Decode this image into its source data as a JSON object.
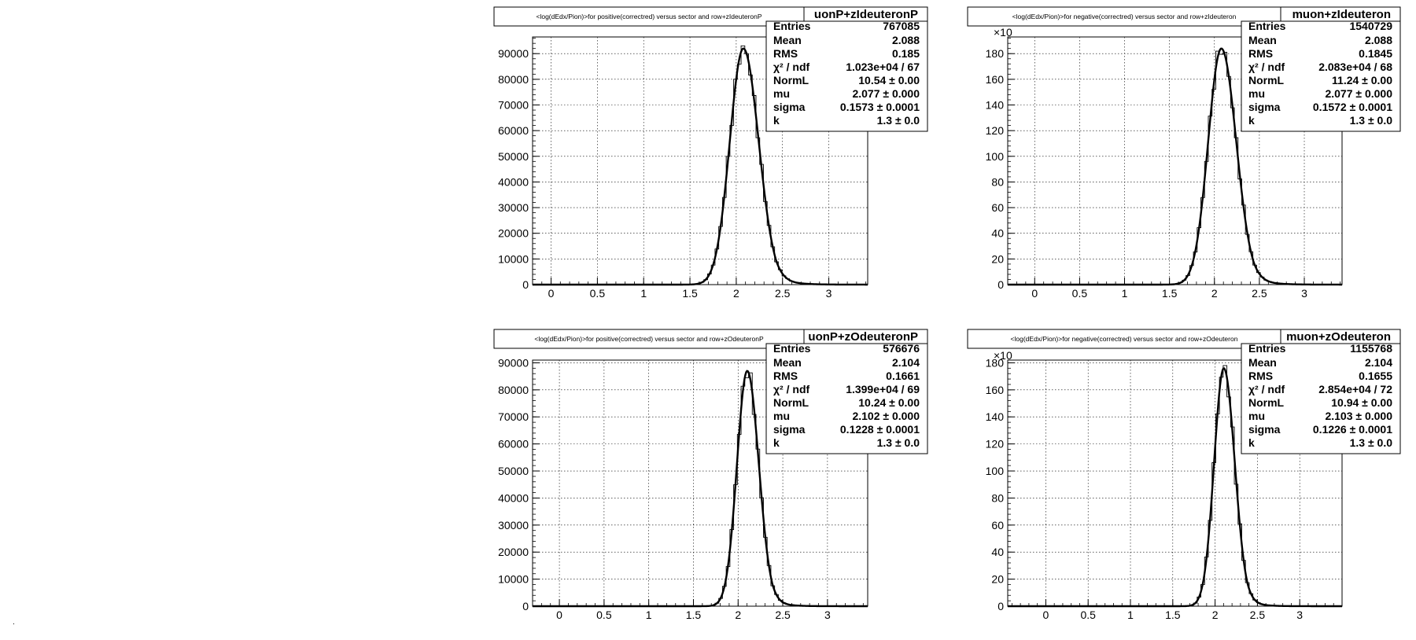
{
  "stray_mark": ".",
  "chart_data": [
    {
      "type": "histogram",
      "title": "<log(dEdx/Pion)>for positive(correctred) versus sector and row+zIdeuteronP",
      "hist_name": "uonP+zIdeuteronP",
      "xlim": [
        -0.2,
        3.42
      ],
      "ylim": [
        0,
        96500
      ],
      "x_ticks": [
        0,
        0.5,
        1,
        1.5,
        2,
        2.5,
        3
      ],
      "x_tick_labels": [
        "0",
        "0.5",
        "1",
        "1.5",
        "2",
        "2.5",
        "3"
      ],
      "y_ticks": [
        0,
        10000,
        20000,
        30000,
        40000,
        50000,
        60000,
        70000,
        80000,
        90000
      ],
      "y_tick_labels": [
        "0",
        "10000",
        "20000",
        "30000",
        "40000",
        "50000",
        "60000",
        "70000",
        "80000",
        "90000"
      ],
      "y_exponent": "",
      "grid": true,
      "stats": [
        {
          "name": "Entries",
          "value": "767085"
        },
        {
          "name": "Mean",
          "value": "2.088"
        },
        {
          "name": "RMS",
          "value": "0.185"
        },
        {
          "name": "χ² / ndf",
          "value": "1.023e+04 / 67"
        },
        {
          "name": "NormL",
          "value": "10.54 ± 0.00"
        },
        {
          "name": "mu",
          "value": "2.077 ± 0.000"
        },
        {
          "name": "sigma",
          "value": "0.1573 ± 0.0001"
        },
        {
          "name": "k",
          "value": "1.3 ± 0.0"
        }
      ],
      "fit": {
        "peak_x": 2.077,
        "peak_y": 92000,
        "sigma": 0.1573,
        "k": 1.3
      }
    },
    {
      "type": "histogram",
      "title": "<log(dEdx/Pion)>for negative(correctred) versus sector and row+zIdeuteron",
      "hist_name": "muon+zIdeuteron",
      "xlim": [
        -0.3,
        3.42
      ],
      "ylim": [
        0,
        193000
      ],
      "x_ticks": [
        0,
        0.5,
        1,
        1.5,
        2,
        2.5,
        3
      ],
      "x_tick_labels": [
        "0",
        "0.5",
        "1",
        "1.5",
        "2",
        "2.5",
        "3"
      ],
      "y_ticks": [
        0,
        20000,
        40000,
        60000,
        80000,
        100000,
        120000,
        140000,
        160000,
        180000
      ],
      "y_tick_labels": [
        "0",
        "20",
        "40",
        "60",
        "80",
        "100",
        "120",
        "140",
        "160",
        "180"
      ],
      "y_exponent": "×10",
      "grid": true,
      "stats": [
        {
          "name": "Entries",
          "value": "1540729"
        },
        {
          "name": "Mean",
          "value": "2.088"
        },
        {
          "name": "RMS",
          "value": "0.1845"
        },
        {
          "name": "χ² / ndf",
          "value": "2.083e+04 / 68"
        },
        {
          "name": "NormL",
          "value": "11.24 ± 0.00"
        },
        {
          "name": "mu",
          "value": "2.077 ± 0.000"
        },
        {
          "name": "sigma",
          "value": "0.1572 ± 0.0001"
        },
        {
          "name": "k",
          "value": "1.3 ± 0.0"
        }
      ],
      "fit": {
        "peak_x": 2.077,
        "peak_y": 184000,
        "sigma": 0.1572,
        "k": 1.3
      }
    },
    {
      "type": "histogram",
      "title": "<log(dEdx/Pion)>for positive(correctred) versus sector and row+zOdeuteronP",
      "hist_name": "uonP+zOdeuteronP",
      "xlim": [
        -0.3,
        3.45
      ],
      "ylim": [
        0,
        91000
      ],
      "x_ticks": [
        0,
        0.5,
        1,
        1.5,
        2,
        2.5,
        3
      ],
      "x_tick_labels": [
        "0",
        "0.5",
        "1",
        "1.5",
        "2",
        "2.5",
        "3"
      ],
      "y_ticks": [
        0,
        10000,
        20000,
        30000,
        40000,
        50000,
        60000,
        70000,
        80000,
        90000
      ],
      "y_tick_labels": [
        "0",
        "10000",
        "20000",
        "30000",
        "40000",
        "50000",
        "60000",
        "70000",
        "80000",
        "90000"
      ],
      "y_exponent": "",
      "grid": true,
      "stats": [
        {
          "name": "Entries",
          "value": "576676"
        },
        {
          "name": "Mean",
          "value": "2.104"
        },
        {
          "name": "RMS",
          "value": "0.1661"
        },
        {
          "name": "χ² / ndf",
          "value": "1.399e+04 / 69"
        },
        {
          "name": "NormL",
          "value": "10.24 ± 0.00"
        },
        {
          "name": "mu",
          "value": "2.102 ± 0.000"
        },
        {
          "name": "sigma",
          "value": "0.1228 ± 0.0001"
        },
        {
          "name": "k",
          "value": "1.3 ± 0.0"
        }
      ],
      "fit": {
        "peak_x": 2.102,
        "peak_y": 87000,
        "sigma": 0.1228,
        "k": 1.3
      }
    },
    {
      "type": "histogram",
      "title": "<log(dEdx/Pion)>for negative(correctred) versus sector and row+zOdeuteron",
      "hist_name": "muon+zOdeuteron",
      "xlim": [
        -0.45,
        3.5
      ],
      "ylim": [
        0,
        182000
      ],
      "x_ticks": [
        0,
        0.5,
        1,
        1.5,
        2,
        2.5,
        3
      ],
      "x_tick_labels": [
        "0",
        "0.5",
        "1",
        "1.5",
        "2",
        "2.5",
        "3"
      ],
      "y_ticks": [
        0,
        20000,
        40000,
        60000,
        80000,
        100000,
        120000,
        140000,
        160000,
        180000
      ],
      "y_tick_labels": [
        "0",
        "20",
        "40",
        "60",
        "80",
        "100",
        "120",
        "140",
        "160",
        "180"
      ],
      "y_exponent": "×10",
      "grid": true,
      "stats": [
        {
          "name": "Entries",
          "value": "1155768"
        },
        {
          "name": "Mean",
          "value": "2.104"
        },
        {
          "name": "RMS",
          "value": "0.1655"
        },
        {
          "name": "χ² / ndf",
          "value": "2.854e+04 / 72"
        },
        {
          "name": "NormL",
          "value": "10.94 ± 0.00"
        },
        {
          "name": "mu",
          "value": "2.103 ± 0.000"
        },
        {
          "name": "sigma",
          "value": "0.1226 ± 0.0001"
        },
        {
          "name": "k",
          "value": "1.3 ± 0.0"
        }
      ],
      "fit": {
        "peak_x": 2.103,
        "peak_y": 176000,
        "sigma": 0.1226,
        "k": 1.3
      }
    }
  ]
}
